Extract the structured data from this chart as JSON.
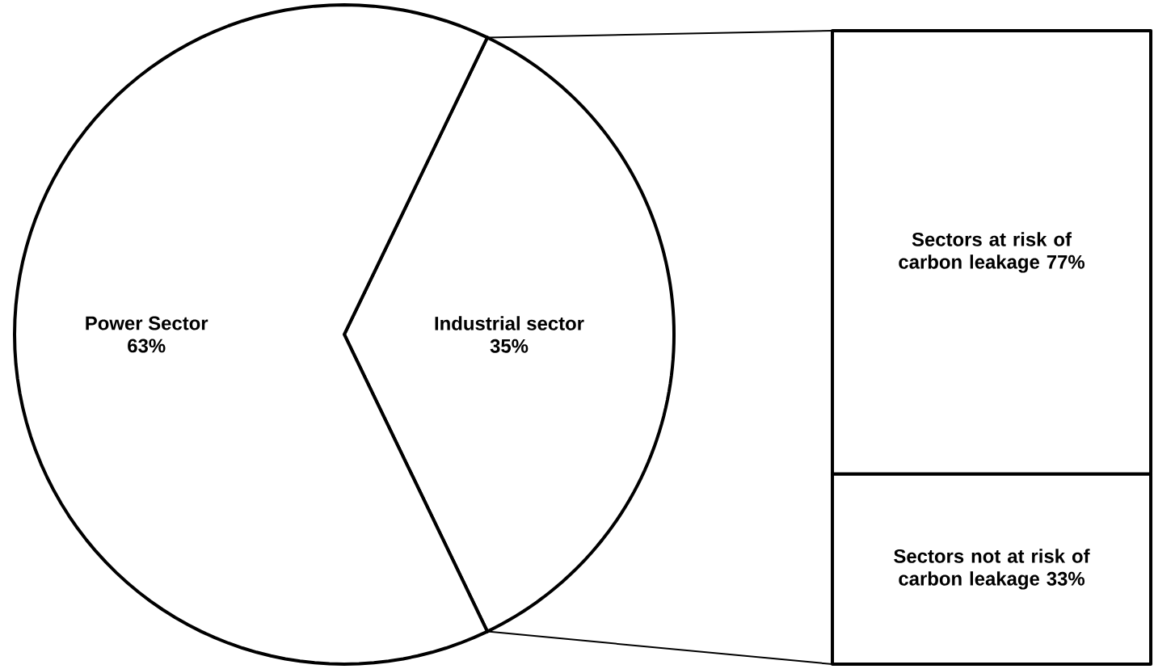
{
  "chart_data": [
    {
      "type": "pie",
      "categories": [
        "Power Sector",
        "Industrial sector"
      ],
      "values": [
        63,
        35
      ],
      "value_labels": [
        "63%",
        "35%"
      ],
      "colors": [
        "#ffffff",
        "#ffffff"
      ]
    },
    {
      "type": "bar",
      "stacked": true,
      "categories": [
        null
      ],
      "series": [
        {
          "name": "Sectors not at risk of carbon leakage",
          "color": "#ffffff",
          "values": [
            33
          ],
          "value_labels": [
            "33%"
          ]
        },
        {
          "name": "Sectors at risk of carbon leakage",
          "color": "#ffffff",
          "values": [
            77
          ],
          "value_labels": [
            "77%"
          ]
        }
      ]
    }
  ]
}
